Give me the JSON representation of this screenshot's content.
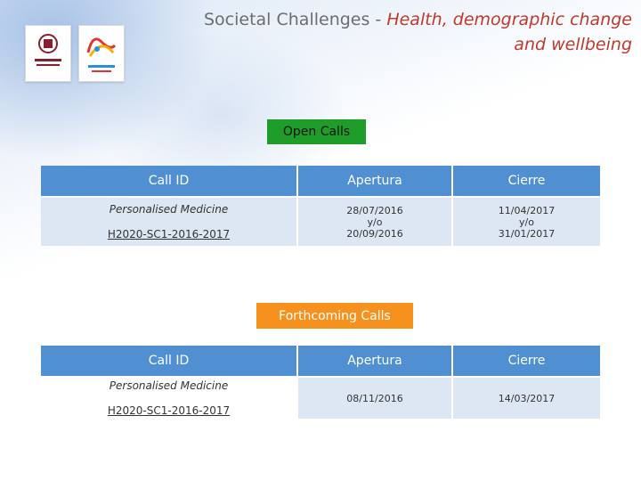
{
  "header": {
    "title_plain": "Societal Challenges - ",
    "title_highlight_line1": "Health, demographic change",
    "title_highlight_line2": "and wellbeing"
  },
  "open_calls": {
    "label": "Open Calls",
    "headers": [
      "Call ID",
      "Apertura",
      "Cierre"
    ],
    "row": {
      "name": "Personalised Medicine",
      "code": "H2020-SC1-2016-2017",
      "apertura": [
        "28/07/2016",
        "y/o",
        "20/09/2016"
      ],
      "cierre": [
        "11/04/2017",
        "y/o",
        "31/01/2017"
      ]
    }
  },
  "forthcoming_calls": {
    "label": "Forthcoming Calls",
    "headers": [
      "Call ID",
      "Apertura",
      "Cierre"
    ],
    "row": {
      "name": "Personalised Medicine",
      "code": "H2020-SC1-2016-2017",
      "apertura": "08/11/2016",
      "cierre": "14/03/2017"
    }
  },
  "colors": {
    "header_blue": "#4f8fd2",
    "open_green": "#1f9d2a",
    "forthcoming_orange": "#f6911e",
    "title_red": "#c0392b"
  }
}
